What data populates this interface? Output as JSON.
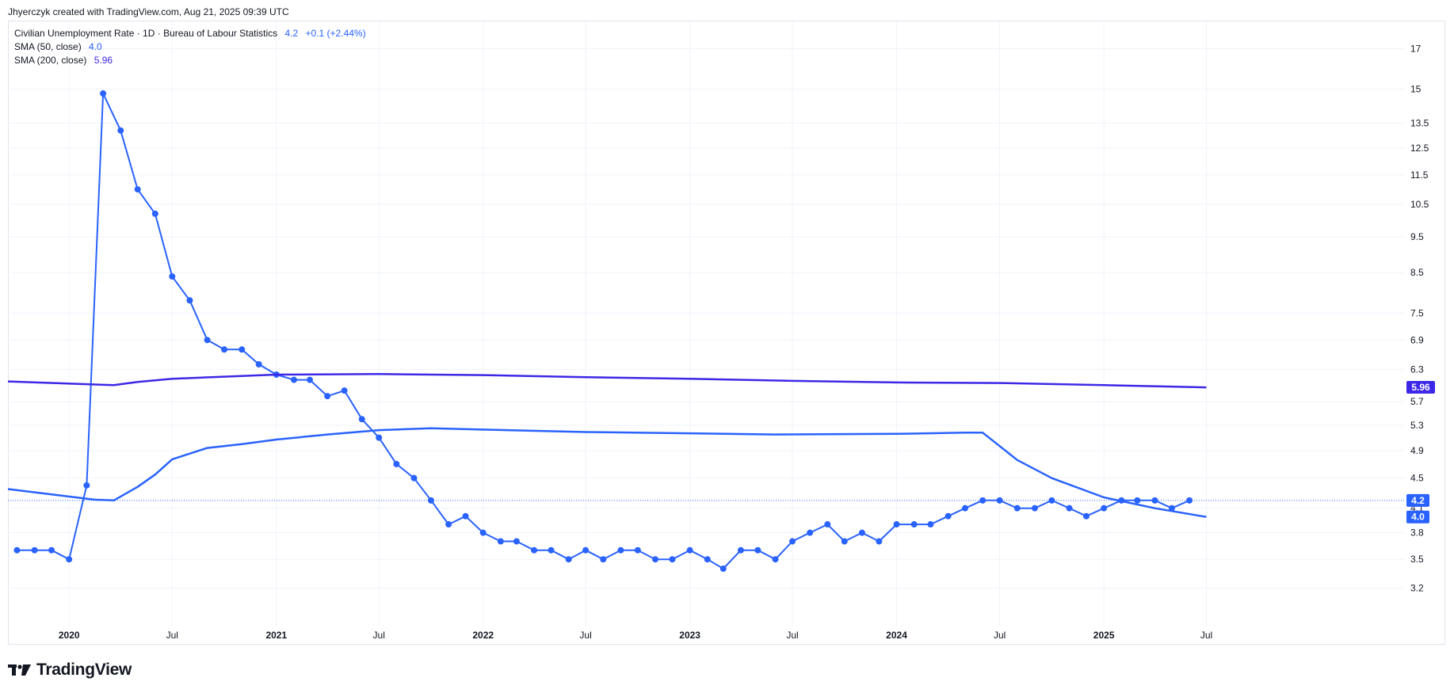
{
  "header": {
    "text": "Jhyerczyk created with TradingView.com, Aug 21, 2025 09:39 UTC"
  },
  "legend": {
    "main_name": "Civilian Unemployment Rate · 1D · Bureau of Labour Statistics",
    "main_value": "4.2",
    "main_change": "+0.1 (+2.44%)",
    "sma50_name": "SMA (50, close)",
    "sma50_value": "4.0",
    "sma200_name": "SMA (200, close)",
    "sma200_value": "5.96"
  },
  "footer": {
    "brand": "TradingView",
    "logo_icon": "tradingview-logo-icon"
  },
  "colors": {
    "main": "#2962ff",
    "sma50": "#2962ff",
    "sma200": "#3c28e6",
    "grid": "#f0f3fa",
    "frame": "#e0e3eb"
  },
  "chart_data": {
    "type": "line",
    "y_scale": "log",
    "ylim": [
      2.85,
      18.5
    ],
    "y_ticks": [
      17,
      15,
      13.5,
      12.5,
      11.5,
      10.5,
      9.5,
      8.5,
      7.5,
      6.9,
      6.3,
      5.7,
      5.3,
      4.9,
      4.5,
      4.1,
      3.8,
      3.5,
      3.2
    ],
    "x_range": [
      "2019-09-15",
      "2026-06-15"
    ],
    "x_ticks": [
      {
        "date": "2020-01-01",
        "label": "2020",
        "major": true
      },
      {
        "date": "2020-07-01",
        "label": "Jul",
        "major": false
      },
      {
        "date": "2021-01-01",
        "label": "2021",
        "major": true
      },
      {
        "date": "2021-07-01",
        "label": "Jul",
        "major": false
      },
      {
        "date": "2022-01-01",
        "label": "2022",
        "major": true
      },
      {
        "date": "2022-07-01",
        "label": "Jul",
        "major": false
      },
      {
        "date": "2023-01-01",
        "label": "2023",
        "major": true
      },
      {
        "date": "2023-07-01",
        "label": "Jul",
        "major": false
      },
      {
        "date": "2024-01-01",
        "label": "2024",
        "major": true
      },
      {
        "date": "2024-07-01",
        "label": "Jul",
        "major": false
      },
      {
        "date": "2025-01-01",
        "label": "2025",
        "major": true
      },
      {
        "date": "2025-07-01",
        "label": "Jul",
        "major": false
      }
    ],
    "series": [
      {
        "name": "Civilian Unemployment Rate",
        "markers": true,
        "start": "2019-10-01",
        "values": [
          3.6,
          3.6,
          3.6,
          3.5,
          4.4,
          14.8,
          13.2,
          11.0,
          10.2,
          8.4,
          7.8,
          6.9,
          6.7,
          6.7,
          6.4,
          6.2,
          6.1,
          6.1,
          5.8,
          5.9,
          5.4,
          5.1,
          4.7,
          4.5,
          4.2,
          3.9,
          4.0,
          3.8,
          3.7,
          3.7,
          3.6,
          3.6,
          3.5,
          3.6,
          3.5,
          3.6,
          3.6,
          3.5,
          3.5,
          3.6,
          3.5,
          3.4,
          3.6,
          3.6,
          3.5,
          3.7,
          3.8,
          3.9,
          3.7,
          3.8,
          3.7,
          3.9,
          3.9,
          3.9,
          4.0,
          4.1,
          4.2,
          4.2,
          4.1,
          4.1,
          4.2,
          4.1,
          4.0,
          4.1,
          4.2,
          4.2,
          4.2,
          4.1,
          4.2
        ]
      },
      {
        "name": "SMA (50, close)",
        "markers": false,
        "points": [
          [
            "2019-09-15",
            4.35
          ],
          [
            "2020-02-15",
            4.21
          ],
          [
            "2020-03-20",
            4.2
          ],
          [
            "2020-05-01",
            4.38
          ],
          [
            "2020-06-01",
            4.55
          ],
          [
            "2020-07-01",
            4.77
          ],
          [
            "2020-09-01",
            4.94
          ],
          [
            "2020-11-01",
            5.0
          ],
          [
            "2021-01-01",
            5.07
          ],
          [
            "2021-04-01",
            5.15
          ],
          [
            "2021-07-01",
            5.22
          ],
          [
            "2021-10-01",
            5.25
          ],
          [
            "2022-01-01",
            5.23
          ],
          [
            "2022-07-01",
            5.19
          ],
          [
            "2023-01-01",
            5.17
          ],
          [
            "2023-06-01",
            5.15
          ],
          [
            "2024-01-01",
            5.16
          ],
          [
            "2024-05-01",
            5.18
          ],
          [
            "2024-06-01",
            5.18
          ],
          [
            "2024-08-01",
            4.76
          ],
          [
            "2024-10-01",
            4.5
          ],
          [
            "2025-01-01",
            4.24
          ],
          [
            "2025-04-01",
            4.1
          ],
          [
            "2025-07-01",
            3.99
          ]
        ]
      },
      {
        "name": "SMA (200, close)",
        "markers": false,
        "points": [
          [
            "2019-09-15",
            6.07
          ],
          [
            "2020-03-20",
            6.0
          ],
          [
            "2020-05-01",
            6.06
          ],
          [
            "2020-07-01",
            6.12
          ],
          [
            "2021-01-01",
            6.2
          ],
          [
            "2021-07-01",
            6.21
          ],
          [
            "2022-01-01",
            6.19
          ],
          [
            "2022-07-01",
            6.15
          ],
          [
            "2023-01-01",
            6.12
          ],
          [
            "2023-07-01",
            6.08
          ],
          [
            "2024-01-01",
            6.05
          ],
          [
            "2024-07-01",
            6.04
          ],
          [
            "2025-01-01",
            6.0
          ],
          [
            "2025-07-01",
            5.96
          ]
        ]
      }
    ],
    "price_tags": [
      {
        "series": "Civilian Unemployment Rate",
        "value": 4.2,
        "label": "4.2",
        "color": "#2962ff"
      },
      {
        "series": "SMA (50, close)",
        "value": 3.99,
        "label": "4.0",
        "color": "#2962ff"
      },
      {
        "series": "SMA (200, close)",
        "value": 5.96,
        "label": "5.96",
        "color": "#3c28e6"
      }
    ],
    "last_value_line": 4.2
  }
}
